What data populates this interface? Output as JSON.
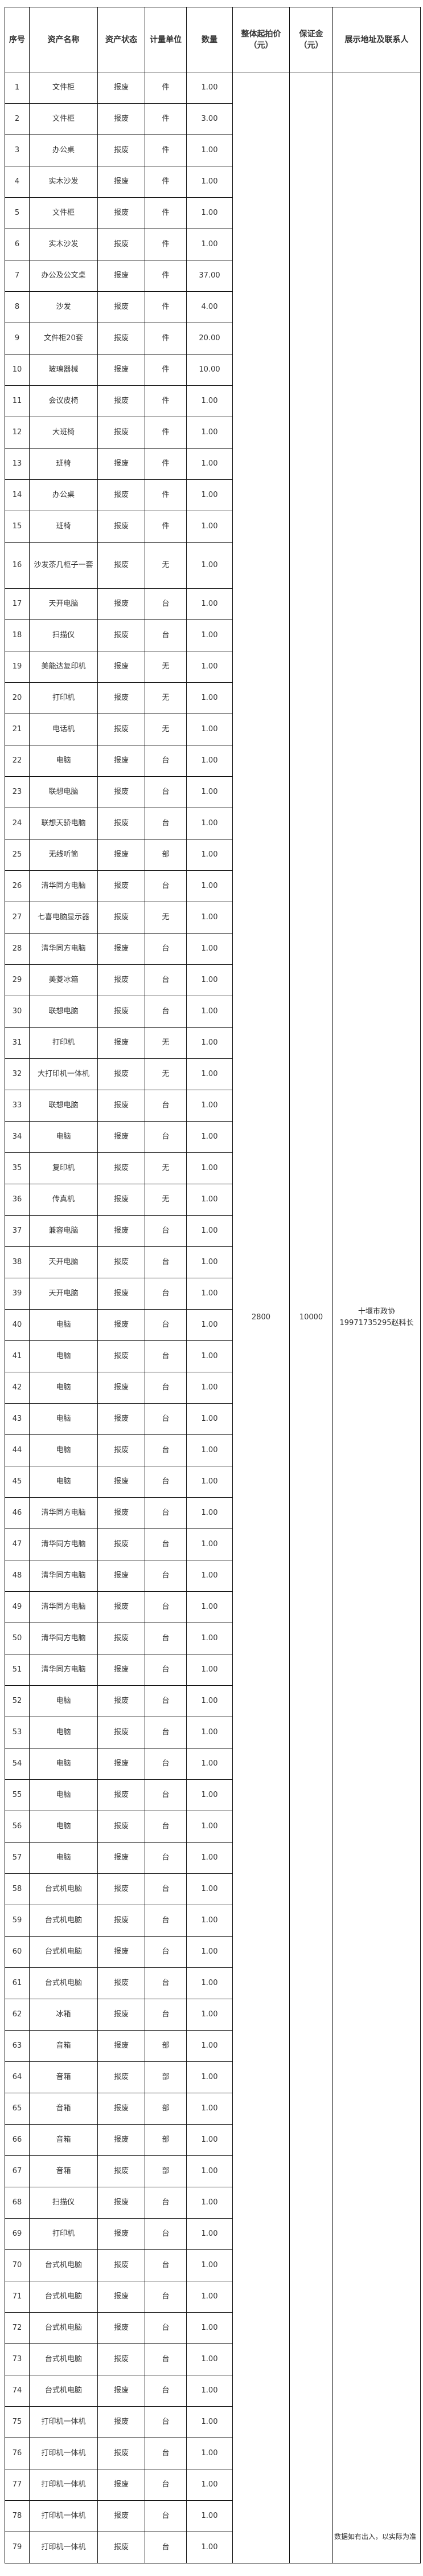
{
  "headers": {
    "index": "序号",
    "name": "资产名称",
    "status": "资产状态",
    "unit": "计量单位",
    "qty": "数量",
    "start_price": "整体起拍价（元）",
    "deposit": "保证金（元）",
    "contact": "展示地址及联系人"
  },
  "merged": {
    "start_price": "2800",
    "deposit": "10000",
    "contact_place": "十堰市政协",
    "contact_person": "19971735295赵科长"
  },
  "rows": [
    [
      "1",
      "文件柜",
      "报废",
      "件",
      "1.00"
    ],
    [
      "2",
      "文件柜",
      "报废",
      "件",
      "3.00"
    ],
    [
      "3",
      "办公桌",
      "报废",
      "件",
      "1.00"
    ],
    [
      "4",
      "实木沙发",
      "报废",
      "件",
      "1.00"
    ],
    [
      "5",
      "文件柜",
      "报废",
      "件",
      "1.00"
    ],
    [
      "6",
      "实木沙发",
      "报废",
      "件",
      "1.00"
    ],
    [
      "7",
      "办公及公文桌",
      "报废",
      "件",
      "37.00"
    ],
    [
      "8",
      "沙发",
      "报废",
      "件",
      "4.00"
    ],
    [
      "9",
      "文件柜20套",
      "报废",
      "件",
      "20.00"
    ],
    [
      "10",
      "玻璃器械",
      "报废",
      "件",
      "10.00"
    ],
    [
      "11",
      "会议皮椅",
      "报废",
      "件",
      "1.00"
    ],
    [
      "12",
      "大班椅",
      "报废",
      "件",
      "1.00"
    ],
    [
      "13",
      "班椅",
      "报废",
      "件",
      "1.00"
    ],
    [
      "14",
      "办公桌",
      "报废",
      "件",
      "1.00"
    ],
    [
      "15",
      "班椅",
      "报废",
      "件",
      "1.00"
    ],
    [
      "16",
      "沙发茶几柜子一套",
      "报废",
      "无",
      "1.00"
    ],
    [
      "17",
      "天开电脑",
      "报废",
      "台",
      "1.00"
    ],
    [
      "18",
      "扫描仪",
      "报废",
      "台",
      "1.00"
    ],
    [
      "19",
      "美能达复印机",
      "报废",
      "无",
      "1.00"
    ],
    [
      "20",
      "打印机",
      "报废",
      "无",
      "1.00"
    ],
    [
      "21",
      "电话机",
      "报废",
      "无",
      "1.00"
    ],
    [
      "22",
      "电脑",
      "报废",
      "台",
      "1.00"
    ],
    [
      "23",
      "联想电脑",
      "报废",
      "台",
      "1.00"
    ],
    [
      "24",
      "联想天骄电脑",
      "报废",
      "台",
      "1.00"
    ],
    [
      "25",
      "无线听筒",
      "报废",
      "部",
      "1.00"
    ],
    [
      "26",
      "清华同方电脑",
      "报废",
      "台",
      "1.00"
    ],
    [
      "27",
      "七喜电脑显示器",
      "报废",
      "无",
      "1.00"
    ],
    [
      "28",
      "清华同方电脑",
      "报废",
      "台",
      "1.00"
    ],
    [
      "29",
      "美菱冰箱",
      "报废",
      "台",
      "1.00"
    ],
    [
      "30",
      "联想电脑",
      "报废",
      "台",
      "1.00"
    ],
    [
      "31",
      "打印机",
      "报废",
      "无",
      "1.00"
    ],
    [
      "32",
      "大打印机一体机",
      "报废",
      "无",
      "1.00"
    ],
    [
      "33",
      "联想电脑",
      "报废",
      "台",
      "1.00"
    ],
    [
      "34",
      "电脑",
      "报废",
      "台",
      "1.00"
    ],
    [
      "35",
      "复印机",
      "报废",
      "无",
      "1.00"
    ],
    [
      "36",
      "传真机",
      "报废",
      "无",
      "1.00"
    ],
    [
      "37",
      "兼容电脑",
      "报废",
      "台",
      "1.00"
    ],
    [
      "38",
      "天开电脑",
      "报废",
      "台",
      "1.00"
    ],
    [
      "39",
      "天开电脑",
      "报废",
      "台",
      "1.00"
    ],
    [
      "40",
      "电脑",
      "报废",
      "台",
      "1.00"
    ],
    [
      "41",
      "电脑",
      "报废",
      "台",
      "1.00"
    ],
    [
      "42",
      "电脑",
      "报废",
      "台",
      "1.00"
    ],
    [
      "43",
      "电脑",
      "报废",
      "台",
      "1.00"
    ],
    [
      "44",
      "电脑",
      "报废",
      "台",
      "1.00"
    ],
    [
      "45",
      "电脑",
      "报废",
      "台",
      "1.00"
    ],
    [
      "46",
      "清华同方电脑",
      "报废",
      "台",
      "1.00"
    ],
    [
      "47",
      "清华同方电脑",
      "报废",
      "台",
      "1.00"
    ],
    [
      "48",
      "清华同方电脑",
      "报废",
      "台",
      "1.00"
    ],
    [
      "49",
      "清华同方电脑",
      "报废",
      "台",
      "1.00"
    ],
    [
      "50",
      "清华同方电脑",
      "报废",
      "台",
      "1.00"
    ],
    [
      "51",
      "清华同方电脑",
      "报废",
      "台",
      "1.00"
    ],
    [
      "52",
      "电脑",
      "报废",
      "台",
      "1.00"
    ],
    [
      "53",
      "电脑",
      "报废",
      "台",
      "1.00"
    ],
    [
      "54",
      "电脑",
      "报废",
      "台",
      "1.00"
    ],
    [
      "55",
      "电脑",
      "报废",
      "台",
      "1.00"
    ],
    [
      "56",
      "电脑",
      "报废",
      "台",
      "1.00"
    ],
    [
      "57",
      "电脑",
      "报废",
      "台",
      "1.00"
    ],
    [
      "58",
      "台式机电脑",
      "报废",
      "台",
      "1.00"
    ],
    [
      "59",
      "台式机电脑",
      "报废",
      "台",
      "1.00"
    ],
    [
      "60",
      "台式机电脑",
      "报废",
      "台",
      "1.00"
    ],
    [
      "61",
      "台式机电脑",
      "报废",
      "台",
      "1.00"
    ],
    [
      "62",
      "冰箱",
      "报废",
      "台",
      "1.00"
    ],
    [
      "63",
      "音箱",
      "报废",
      "部",
      "1.00"
    ],
    [
      "64",
      "音箱",
      "报废",
      "部",
      "1.00"
    ],
    [
      "65",
      "音箱",
      "报废",
      "部",
      "1.00"
    ],
    [
      "66",
      "音箱",
      "报废",
      "部",
      "1.00"
    ],
    [
      "67",
      "音箱",
      "报废",
      "部",
      "1.00"
    ],
    [
      "68",
      "扫描仪",
      "报废",
      "台",
      "1.00"
    ],
    [
      "69",
      "打印机",
      "报废",
      "台",
      "1.00"
    ],
    [
      "70",
      "台式机电脑",
      "报废",
      "台",
      "1.00"
    ],
    [
      "71",
      "台式机电脑",
      "报废",
      "台",
      "1.00"
    ],
    [
      "72",
      "台式机电脑",
      "报废",
      "台",
      "1.00"
    ],
    [
      "73",
      "台式机电脑",
      "报废",
      "台",
      "1.00"
    ],
    [
      "74",
      "台式机电脑",
      "报废",
      "台",
      "1.00"
    ],
    [
      "75",
      "打印机一体机",
      "报废",
      "台",
      "1.00"
    ],
    [
      "76",
      "打印机一体机",
      "报废",
      "台",
      "1.00"
    ],
    [
      "77",
      "打印机一体机",
      "报废",
      "台",
      "1.00"
    ],
    [
      "78",
      "打印机一体机",
      "报废",
      "台",
      "1.00"
    ],
    [
      "79",
      "打印机一体机",
      "报废",
      "台",
      "1.00"
    ]
  ],
  "footer_note": "数据如有出入，以实际为准"
}
